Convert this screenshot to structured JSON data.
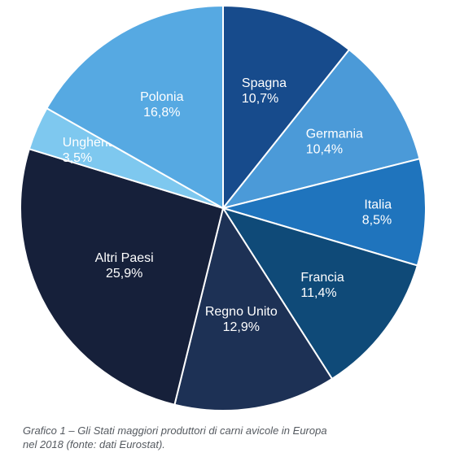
{
  "chart_data": {
    "type": "pie",
    "slices": [
      {
        "category": "Spagna",
        "label": "10,7%",
        "value": 10.7,
        "color": "#174b8c"
      },
      {
        "category": "Germania",
        "label": "10,4%",
        "value": 10.4,
        "color": "#4b9ad8"
      },
      {
        "category": "Italia",
        "label": "8,5%",
        "value": 8.5,
        "color": "#1f74bd"
      },
      {
        "category": "Francia",
        "label": "11,4%",
        "value": 11.4,
        "color": "#0f4a78"
      },
      {
        "category": "Regno Unito",
        "label": "12,9%",
        "value": 12.9,
        "color": "#1d3155"
      },
      {
        "category": "Altri Paesi",
        "label": "25,9%",
        "value": 25.9,
        "color": "#16203a"
      },
      {
        "category": "Ungheria",
        "label": "3,5%",
        "value": 3.5,
        "color": "#7ec8ef"
      },
      {
        "category": "Polonia",
        "label": "16,8%",
        "value": 16.8,
        "color": "#56a9e2"
      }
    ],
    "start_angle_deg": 0,
    "direction": "clockwise"
  },
  "caption": {
    "line1": "Grafico 1 – Gli Stati maggiori produttori di carni avicole in Europa",
    "line2": "nel 2018 (fonte: dati Eurostat)."
  }
}
